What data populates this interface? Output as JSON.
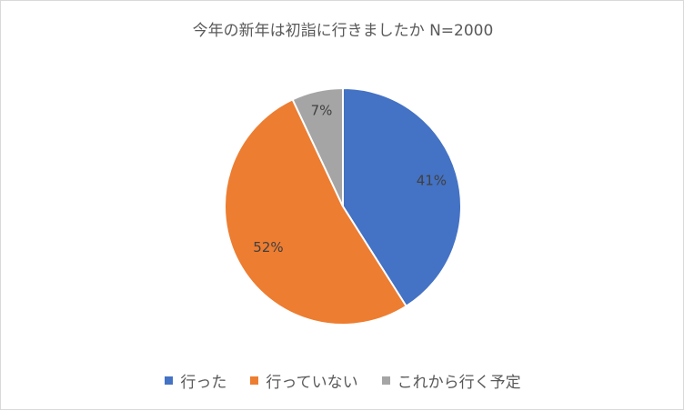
{
  "chart_data": {
    "type": "pie",
    "title": "今年の新年は初詣に行きましたか N=2000",
    "categories": [
      "行った",
      "行っていない",
      "これから行く予定"
    ],
    "values": [
      41,
      52,
      7
    ],
    "data_labels": [
      "41%",
      "52%",
      "7%"
    ],
    "colors": [
      "#4472c4",
      "#ed7d31",
      "#a5a5a5"
    ],
    "legend_position": "bottom"
  }
}
